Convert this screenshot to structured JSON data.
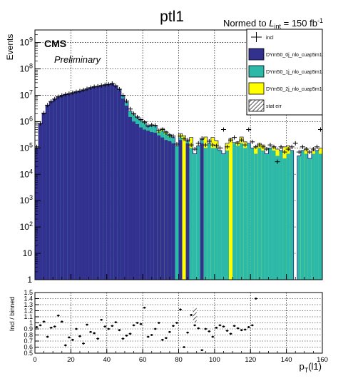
{
  "title": "ptl1",
  "lumi": {
    "prefix": "Normed to ",
    "L": "L",
    "sub": "int",
    "suffix": " = 150 fb",
    "sup": "-1"
  },
  "cms_label": "CMS",
  "preliminary": "Preliminary",
  "colors": {
    "dy0j": "#33318f",
    "dy1j": "#2db9a7",
    "dy2j": "#ffff00",
    "incl": "#000000",
    "frame": "#000000",
    "grid": "#000000"
  },
  "chart_data": [
    {
      "type": "histogram",
      "name": "main",
      "ylabel": "Events",
      "yscale": "log",
      "xlim": [
        0,
        160
      ],
      "ylim": [
        1,
        3000000000
      ],
      "x_ticks": [
        0,
        20,
        40,
        60,
        80,
        100,
        120,
        140,
        160
      ],
      "y_ticks": [
        {
          "v": 1,
          "label": "1"
        },
        {
          "v": 10,
          "label": "10"
        },
        {
          "v": 100,
          "base": "10",
          "exp": "2"
        },
        {
          "v": 1000,
          "base": "10",
          "exp": "3"
        },
        {
          "v": 10000,
          "base": "10",
          "exp": "4"
        },
        {
          "v": 100000,
          "base": "10",
          "exp": "5"
        },
        {
          "v": 1000000,
          "base": "10",
          "exp": "6"
        },
        {
          "v": 10000000,
          "base": "10",
          "exp": "7"
        },
        {
          "v": 100000000,
          "base": "10",
          "exp": "8"
        },
        {
          "v": 1000000000,
          "base": "10",
          "exp": "9"
        }
      ],
      "grid": true,
      "legend_placement": "top-right",
      "legend": [
        {
          "label": "incl",
          "style": "marker"
        },
        {
          "label": "DYm50_0j_nlo_cuap5m1",
          "style": "fill",
          "color": "#33318f"
        },
        {
          "label": "DYm50_1j_nlo_cuap5m1",
          "style": "fill",
          "color": "#2db9a7"
        },
        {
          "label": "DYm50_2j_nlo_cuap5m1",
          "style": "fill",
          "color": "#ffff00"
        },
        {
          "label": "stat err",
          "style": "hatch"
        }
      ],
      "bin_width": 2,
      "bins": [
        0,
        2,
        4,
        6,
        8,
        10,
        12,
        14,
        16,
        18,
        20,
        22,
        24,
        26,
        28,
        30,
        32,
        34,
        36,
        38,
        40,
        42,
        44,
        46,
        48,
        50,
        52,
        54,
        56,
        58,
        60,
        62,
        64,
        66,
        68,
        70,
        72,
        74,
        76,
        78,
        80,
        82,
        84,
        86,
        88,
        90,
        92,
        94,
        96,
        98,
        100,
        102,
        104,
        106,
        108,
        110,
        112,
        114,
        116,
        118,
        120,
        122,
        124,
        126,
        128,
        130,
        132,
        134,
        136,
        138,
        140,
        142,
        144,
        146,
        148,
        150,
        152,
        154,
        156,
        158
      ],
      "series": [
        {
          "key": "dy0j",
          "label": "DYm50_0j_nlo_cuap5m1",
          "values": [
            100000,
            800000,
            2000000,
            4000000,
            5500000,
            7000000,
            8500000,
            9500000,
            10500000,
            11000000,
            12000000,
            13000000,
            14000000,
            15500000,
            17000000,
            19000000,
            20000000,
            21000000,
            22500000,
            24000000,
            25000000,
            27000000,
            22000000,
            15000000,
            7500000,
            4000000,
            1500000,
            1000000,
            800000,
            600000,
            500000,
            450000,
            400000,
            380000,
            300000,
            250000,
            200000,
            180000,
            150000,
            0,
            200000,
            0,
            150000,
            0,
            0,
            0,
            150000,
            0,
            0,
            0,
            0,
            0,
            0,
            0,
            0,
            0,
            0,
            0,
            0,
            0,
            0,
            0,
            0,
            0,
            0,
            0,
            0,
            0,
            0,
            0,
            0,
            0,
            0,
            0,
            0,
            0,
            0,
            0,
            0,
            0
          ]
        },
        {
          "key": "dy1j",
          "label": "DYm50_1j_nlo_cuap5m1",
          "values": [
            0,
            0,
            0,
            0,
            0,
            0,
            0,
            0,
            0,
            0,
            0,
            0,
            0,
            0,
            0,
            0,
            0,
            0,
            0,
            0,
            0,
            0,
            0,
            1000000,
            2000000,
            1500000,
            1000000,
            800000,
            600000,
            500000,
            400000,
            200000,
            300000,
            300000,
            100000,
            200000,
            150000,
            100000,
            100000,
            120000,
            50000,
            0,
            30000,
            100000,
            60000,
            120000,
            50000,
            100000,
            150000,
            100000,
            100000,
            80000,
            60000,
            80000,
            0,
            150000,
            120000,
            150000,
            100000,
            150000,
            100000,
            60000,
            100000,
            80000,
            60000,
            100000,
            80000,
            50000,
            80000,
            40000,
            60000,
            80000,
            0,
            50000,
            80000,
            60000,
            40000,
            60000,
            80000,
            60000
          ]
        },
        {
          "key": "dy2j",
          "label": "DYm50_2j_nlo_cuap5m1",
          "values": [
            0,
            0,
            0,
            0,
            0,
            0,
            0,
            0,
            0,
            0,
            0,
            0,
            0,
            0,
            0,
            0,
            0,
            0,
            0,
            0,
            0,
            0,
            0,
            0,
            0,
            0,
            0,
            0,
            0,
            0,
            0,
            0,
            0,
            0,
            0,
            0,
            0,
            0,
            0,
            0,
            0,
            0,
            0,
            0,
            0,
            0,
            0,
            0,
            0,
            0,
            0,
            0,
            0,
            0,
            0,
            0,
            0,
            0,
            0,
            0,
            0,
            0,
            0,
            0,
            0,
            0,
            0,
            0,
            0,
            0,
            0,
            0,
            0,
            0,
            0,
            0,
            0,
            0,
            0,
            0
          ]
        }
      ],
      "stack_tops": [
        100000,
        800000,
        2000000,
        4000000,
        5500000,
        7000000,
        8500000,
        9500000,
        10500000,
        11000000,
        12000000,
        13000000,
        14000000,
        15500000,
        17000000,
        19000000,
        20000000,
        21000000,
        22500000,
        24000000,
        25000000,
        27000000,
        22000000,
        16000000,
        9500000,
        5500000,
        2500000,
        1800000,
        1400000,
        1100000,
        900000,
        650000,
        700000,
        680000,
        400000,
        450000,
        350000,
        280000,
        250000,
        120000,
        250000,
        0,
        180000,
        100000,
        60000,
        120000,
        200000,
        100000,
        150000,
        100000,
        100000,
        80000,
        60000,
        80000,
        0,
        150000,
        120000,
        150000,
        100000,
        150000,
        100000,
        60000,
        100000,
        80000,
        60000,
        100000,
        80000,
        50000,
        80000,
        40000,
        60000,
        80000,
        0,
        50000,
        80000,
        60000,
        40000,
        60000,
        80000,
        60000
      ],
      "dy2j_tops": {
        "bins": [
          52,
          54,
          60,
          68,
          70,
          72,
          74,
          80,
          82,
          86,
          92,
          94,
          98,
          100,
          106,
          108,
          110,
          112,
          114,
          116,
          118,
          122,
          124,
          126,
          132,
          134,
          138,
          140,
          148,
          150,
          154,
          158
        ],
        "tops": [
          2500000,
          1900000,
          1000000,
          450000,
          550000,
          420000,
          320000,
          350000,
          290000,
          250000,
          210000,
          260000,
          250000,
          190000,
          150000,
          230000,
          160000,
          170000,
          260000,
          170000,
          150000,
          110000,
          150000,
          130000,
          110000,
          90000,
          110000,
          120000,
          70000,
          90000,
          80000,
          100000
        ]
      },
      "incl_points": {
        "x": [
          1,
          3,
          5,
          7,
          9,
          11,
          13,
          15,
          17,
          19,
          21,
          23,
          25,
          27,
          29,
          31,
          33,
          35,
          37,
          39,
          41,
          43,
          45,
          47,
          49,
          51,
          53,
          55,
          57,
          59,
          61,
          63,
          65,
          67,
          69,
          71,
          73,
          75,
          77,
          79,
          81,
          83,
          85,
          87,
          89,
          91,
          93,
          95,
          97,
          99,
          101,
          103,
          105,
          107,
          109,
          111,
          113,
          115,
          117,
          119,
          121,
          123,
          125,
          127,
          129,
          131,
          133,
          135,
          137,
          139,
          141,
          143,
          145,
          147,
          149,
          151,
          153,
          155,
          157,
          159
        ],
        "y": [
          110000,
          850000,
          2100000,
          4200000,
          5800000,
          7200000,
          8800000,
          9800000,
          10800000,
          11500000,
          12500000,
          13500000,
          14500000,
          16000000,
          17500000,
          19500000,
          21000000,
          22000000,
          23500000,
          25000000,
          26000000,
          28000000,
          23000000,
          17000000,
          10000000,
          6000000,
          3000000,
          2000000,
          1500000,
          1200000,
          950000,
          700000,
          750000,
          720000,
          450000,
          500000,
          380000,
          300000,
          280000,
          140000,
          280000,
          220000,
          200000,
          130000,
          90000,
          150000,
          230000,
          130000,
          180000,
          130000,
          120000,
          100000,
          500000,
          110000,
          200000,
          250000,
          150000,
          200000,
          130000,
          500000,
          170000,
          110000,
          130000,
          110000,
          90000,
          130000,
          110000,
          30000,
          110000,
          70000,
          90000,
          110000,
          150000,
          70000,
          110000,
          90000,
          70000,
          90000,
          110000,
          500000
        ]
      }
    },
    {
      "type": "scatter",
      "name": "ratio",
      "ylabel": "Incl / binned",
      "xlabel": {
        "base": "p",
        "sub": "T",
        "suffix": "(l1)"
      },
      "xlim": [
        0,
        160
      ],
      "ylim": [
        0.5,
        1.5
      ],
      "x_ticks": [
        0,
        20,
        40,
        60,
        80,
        100,
        120,
        140,
        160
      ],
      "y_ticks": [
        0.5,
        0.6,
        0.7,
        0.8,
        0.9,
        1.0,
        1.1,
        1.2,
        1.3,
        1.4,
        1.5
      ],
      "y_tick_labels": [
        "0.5",
        "0.6",
        "0.7",
        "0.8",
        "0.9",
        "1",
        "1.1",
        "1.2",
        "1.3",
        "1.4",
        "1.5"
      ],
      "grid": true,
      "points": {
        "x": [
          1,
          3,
          5,
          7,
          9,
          11,
          13,
          15,
          17,
          19,
          21,
          23,
          25,
          27,
          29,
          31,
          33,
          35,
          37,
          39,
          41,
          43,
          45,
          47,
          49,
          51,
          53,
          55,
          57,
          59,
          61,
          63,
          65,
          67,
          69,
          71,
          73,
          75,
          77,
          79,
          81,
          83,
          85,
          87,
          89,
          91,
          93,
          95,
          97,
          99,
          101,
          103,
          105,
          107,
          109,
          111,
          113,
          115,
          117,
          119,
          121,
          123
        ],
        "y": [
          0.93,
          0.96,
          1.02,
          0.77,
          0.92,
          0.94,
          1.12,
          1.02,
          0.63,
          0.76,
          0.72,
          0.9,
          0.78,
          0.66,
          0.97,
          0.85,
          0.83,
          0.74,
          1.05,
          0.94,
          0.9,
          0.95,
          1.01,
          0.88,
          0.74,
          0.79,
          0.82,
          0.96,
          1.0,
          0.98,
          1.25,
          0.77,
          0.8,
          0.9,
          1.0,
          0.72,
          0.75,
          0.85,
          0.95,
          1.0,
          1.22,
          0.6,
          0.84,
          1.13,
          0.96,
          0.91,
          0.55,
          0.9,
          0.86,
          0.77,
          0.92,
          0.96,
          0.94,
          0.87,
          0.82,
          0.95,
          0.91,
          0.88,
          0.89,
          0.93,
          0.96,
          1.4
        ]
      }
    }
  ]
}
